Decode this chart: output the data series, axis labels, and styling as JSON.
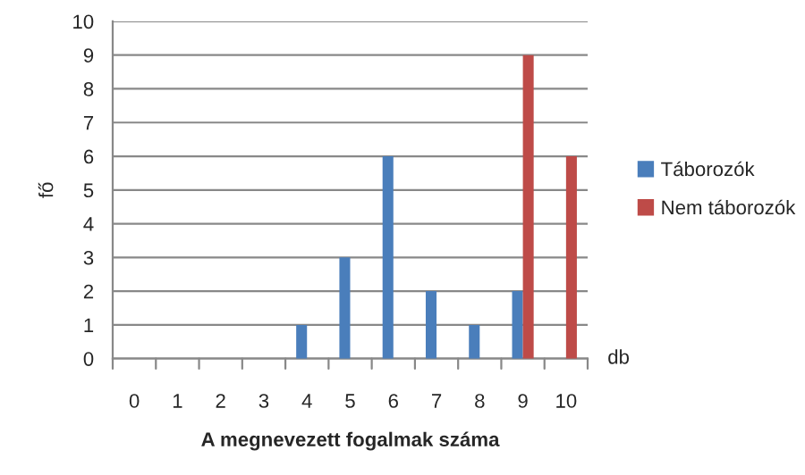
{
  "chart_data": {
    "type": "bar",
    "xlabel": "A megnevezett fogalmak száma",
    "ylabel": "fő",
    "categories": [
      "0",
      "1",
      "2",
      "3",
      "4",
      "5",
      "6",
      "7",
      "8",
      "9",
      "10"
    ],
    "series": [
      {
        "name": "Táborozók",
        "color": "#4a7ebb",
        "values": [
          0,
          0,
          0,
          0,
          1,
          3,
          6,
          2,
          1,
          2,
          0
        ]
      },
      {
        "name": "Nem táborozók",
        "color": "#be4b48",
        "values": [
          0,
          0,
          0,
          0,
          0,
          0,
          0,
          0,
          0,
          9,
          6
        ]
      }
    ],
    "ylim": [
      0,
      10
    ],
    "yticks": [
      0,
      1,
      2,
      3,
      4,
      5,
      6,
      7,
      8,
      9,
      10
    ],
    "grid": "y",
    "legend": "right",
    "annotations": [
      "db"
    ]
  }
}
